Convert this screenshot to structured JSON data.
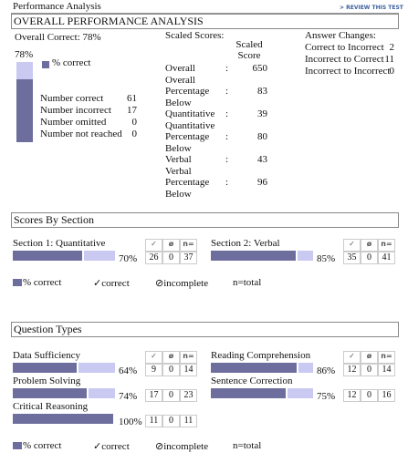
{
  "header": {
    "title": "Performance Analysis",
    "link": "> REVIEW THIS TEST"
  },
  "legend": {
    "percent": "% correct",
    "correct": "✓correct",
    "incomplete": "⊘incomplete",
    "total": "n=total"
  },
  "columns": [
    "✓",
    "ø",
    "n="
  ],
  "overall": {
    "heading": "OVERALL PERFORMANCE ANALYSIS",
    "correct_title": "Overall Correct: 78%",
    "percent": 78,
    "percent_label": "78%",
    "counts": [
      {
        "label": "Number correct",
        "value": 61
      },
      {
        "label": "Number incorrect",
        "value": 17
      },
      {
        "label": "Number omitted",
        "value": 0
      },
      {
        "label": "Number not reached",
        "value": 0
      }
    ]
  },
  "scaled_scores": {
    "title": "Scaled Scores:",
    "column_header": "Scaled Score",
    "separator": ":",
    "rows": [
      {
        "label": "Overall",
        "value": 650
      },
      {
        "label": "Overall Percentage Below",
        "value": 83
      },
      {
        "label": "Quantitative",
        "value": 39
      },
      {
        "label": "Quantitative Percentage Below",
        "value": 80
      },
      {
        "label": "Verbal",
        "value": 43
      },
      {
        "label": "Verbal Percentage Below",
        "value": 96
      }
    ]
  },
  "answer_changes": {
    "title": "Answer Changes:",
    "rows": [
      {
        "label": "Correct to Incorrect",
        "value": 2
      },
      {
        "label": "Incorrect to Correct",
        "value": 11
      },
      {
        "label": "Incorrect to Incorrect",
        "value": 0
      }
    ]
  },
  "sections": {
    "heading": "Scores By Section",
    "columns": [
      [
        {
          "label": "Section 1: Quantitative",
          "percent": 70,
          "percent_label": "70%",
          "correct": 26,
          "incomplete": 0,
          "total": 37
        }
      ],
      [
        {
          "label": "Section 2: Verbal",
          "percent": 85,
          "percent_label": "85%",
          "correct": 35,
          "incomplete": 0,
          "total": 41
        }
      ]
    ]
  },
  "question_types": {
    "heading": "Question Types",
    "columns": [
      [
        {
          "label": "Data Sufficiency",
          "percent": 64,
          "percent_label": "64%",
          "correct": 9,
          "incomplete": 0,
          "total": 14
        },
        {
          "label": "Problem Solving",
          "percent": 74,
          "percent_label": "74%",
          "correct": 17,
          "incomplete": 0,
          "total": 23
        },
        {
          "label": "Critical Reasoning",
          "percent": 100,
          "percent_label": "100%",
          "correct": 11,
          "incomplete": 0,
          "total": 11
        }
      ],
      [
        {
          "label": "Reading Comprehension",
          "percent": 86,
          "percent_label": "86%",
          "correct": 12,
          "incomplete": 0,
          "total": 14
        },
        {
          "label": "Sentence Correction",
          "percent": 75,
          "percent_label": "75%",
          "correct": 12,
          "incomplete": 0,
          "total": 16
        }
      ]
    ]
  }
}
